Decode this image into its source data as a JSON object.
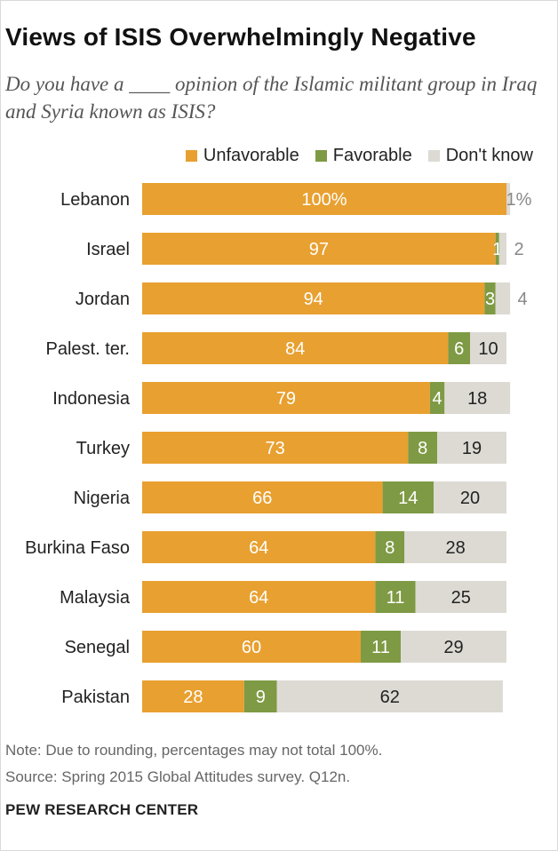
{
  "title": "Views of ISIS Overwhelmingly Negative",
  "subtitle": "Do you have a ____ opinion of the Islamic militant group in Iraq and Syria known as ISIS?",
  "legend": {
    "unfavorable": "Unfavorable",
    "favorable": "Favorable",
    "dont_know": "Don't know"
  },
  "notes": {
    "rounding": "Note: Due to rounding, percentages may not total 100%.",
    "source": "Source: Spring 2015 Global Attitudes survey. Q12n."
  },
  "organization": "PEW RESEARCH CENTER",
  "colors": {
    "unfavorable": "#E8A030",
    "favorable": "#7E9A44",
    "dont_know": "#DCDAD3"
  },
  "chart_data": {
    "type": "bar",
    "orientation": "horizontal",
    "stacked": true,
    "title": "Views of ISIS Overwhelmingly Negative",
    "xlim": [
      0,
      100
    ],
    "categories": [
      "Lebanon",
      "Israel",
      "Jordan",
      "Palest. ter.",
      "Indonesia",
      "Turkey",
      "Nigeria",
      "Burkina Faso",
      "Malaysia",
      "Senegal",
      "Pakistan"
    ],
    "series": [
      {
        "name": "Unfavorable",
        "values": [
          100,
          97,
          94,
          84,
          79,
          73,
          66,
          64,
          64,
          60,
          28
        ],
        "labels": [
          "100%",
          "97",
          "94",
          "84",
          "79",
          "73",
          "66",
          "64",
          "64",
          "60",
          "28"
        ]
      },
      {
        "name": "Favorable",
        "values": [
          0,
          1,
          3,
          6,
          4,
          8,
          14,
          8,
          11,
          11,
          9
        ],
        "labels": [
          "",
          "1",
          "3",
          "6",
          "4",
          "8",
          "14",
          "8",
          "11",
          "11",
          "9"
        ]
      },
      {
        "name": "Don't know",
        "values": [
          1,
          2,
          4,
          10,
          18,
          19,
          20,
          28,
          25,
          29,
          62
        ],
        "labels": [
          "1%",
          "2",
          "4",
          "10",
          "18",
          "19",
          "20",
          "28",
          "25",
          "29",
          "62"
        ]
      }
    ]
  }
}
